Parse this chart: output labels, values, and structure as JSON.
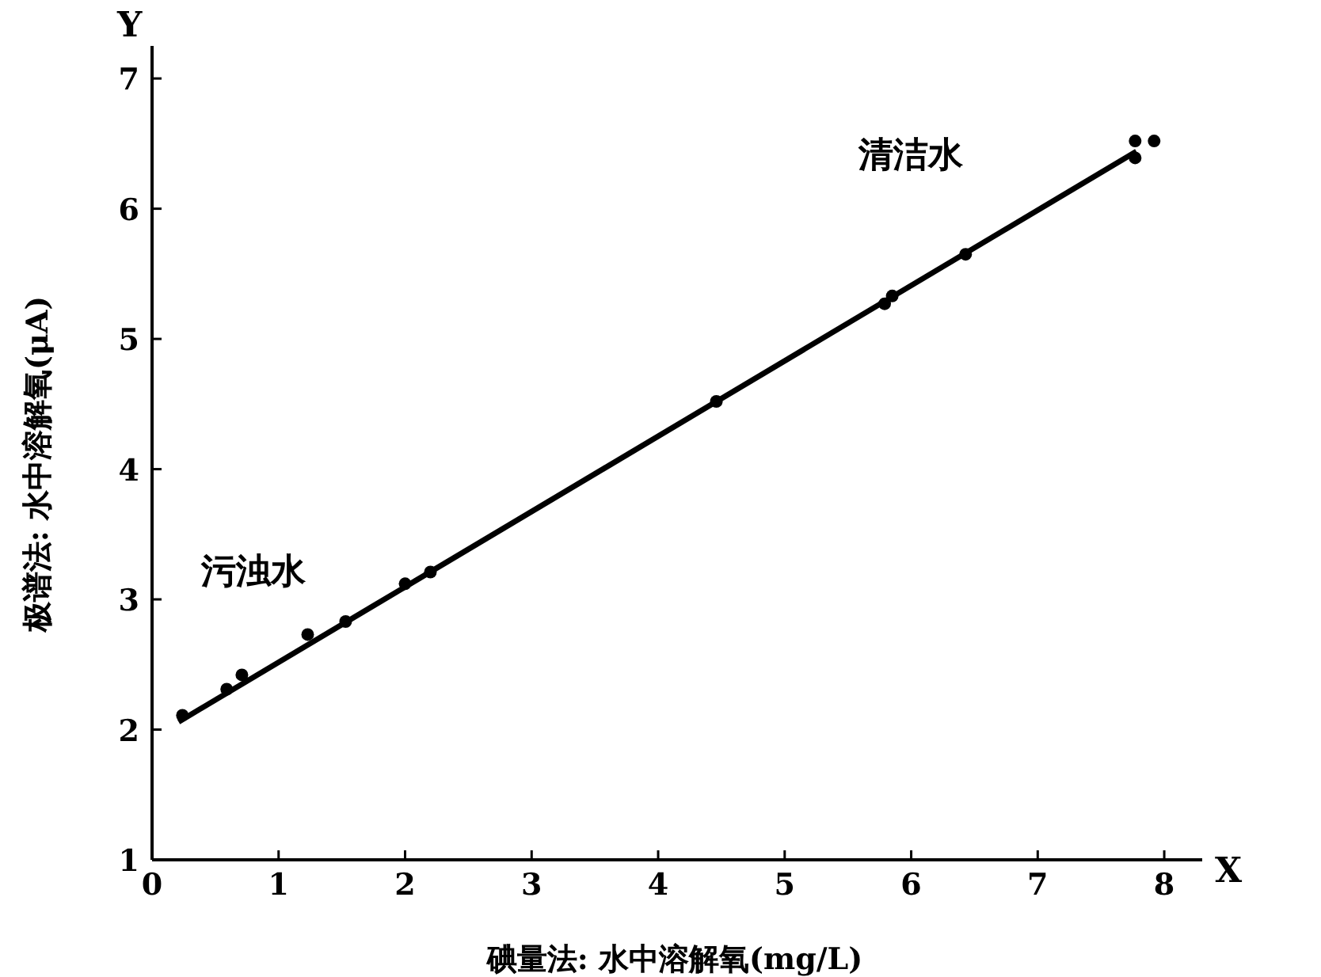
{
  "chart_data": {
    "type": "scatter",
    "xlabel": "碘量法: 水中溶解氧(mg/L)",
    "ylabel": "极谱法: 水中溶解氧(μA)",
    "xlim": [
      0,
      8.3
    ],
    "ylim": [
      1,
      7.25
    ],
    "xticks": [
      0,
      1,
      2,
      3,
      4,
      5,
      6,
      7,
      8
    ],
    "yticks": [
      1,
      2,
      3,
      4,
      5,
      6,
      7
    ],
    "grid": false,
    "series": [
      {
        "color": "#000000",
        "marker": "circle",
        "x": [
          0.24,
          0.59,
          0.71,
          1.23,
          1.53,
          2.0,
          2.2,
          4.46,
          5.79,
          5.85,
          6.43,
          7.77,
          7.77,
          7.92
        ],
        "values": [
          2.11,
          2.31,
          2.42,
          2.73,
          2.83,
          3.12,
          3.21,
          4.52,
          5.27,
          5.33,
          5.65,
          6.39,
          6.52,
          6.52
        ]
      },
      {
        "type": "line",
        "color": "#000000",
        "marker": "none",
        "x": [
          0.21,
          7.78
        ],
        "values": [
          2.06,
          6.44
        ]
      }
    ],
    "annotations": [
      "清洁水",
      "污浊水",
      "X",
      "Y"
    ]
  }
}
